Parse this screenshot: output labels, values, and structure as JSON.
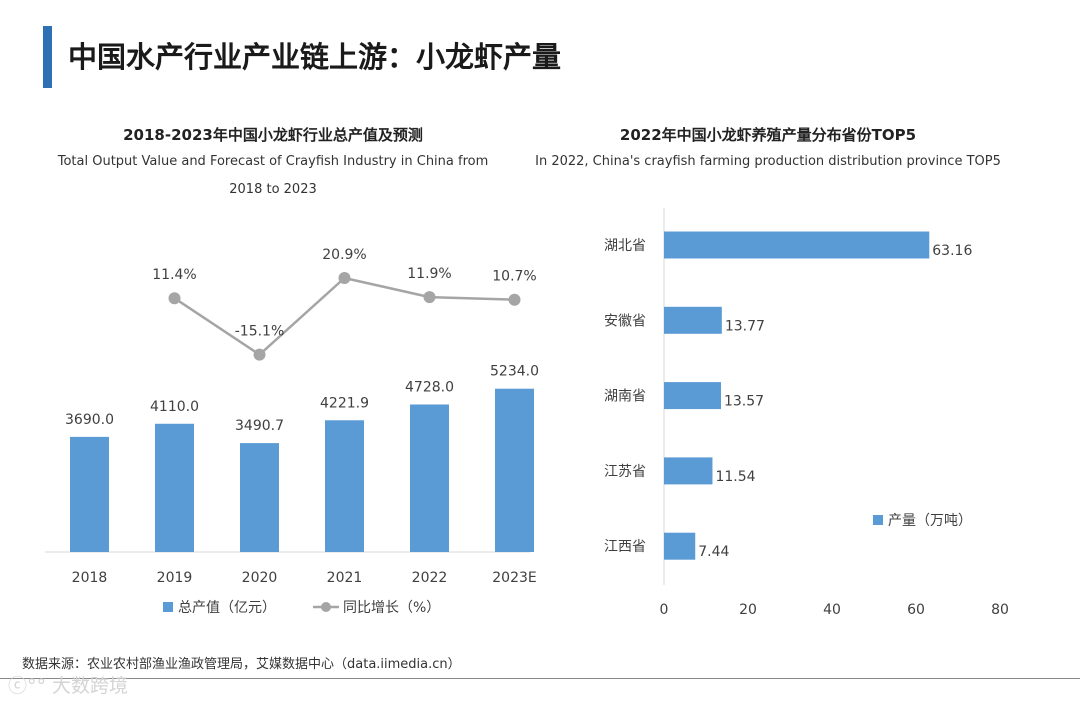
{
  "page": {
    "title": "中国水产行业产业链上游：小龙虾产量"
  },
  "source": "数据来源：农业农村部渔业渔政管理局，艾媒数据中心（data.iimedia.cn）",
  "watermark": "大数跨境",
  "colors": {
    "accent": "#2f6fb3",
    "bar": "#5b9bd5",
    "line": "#a5a5a5"
  },
  "chart_data": [
    {
      "type": "bar+line",
      "title": "2018-2023年中国小龙虾行业总产值及预测",
      "subtitle": "Total Output Value and Forecast of Crayfish Industry in China from 2018 to 2023",
      "categories": [
        "2018",
        "2019",
        "2020",
        "2021",
        "2022",
        "2023E"
      ],
      "series": [
        {
          "name": "总产值（亿元）",
          "type": "bar",
          "values": [
            3690.0,
            4110.0,
            3490.7,
            4221.9,
            4728.0,
            5234.0
          ],
          "labels": [
            "3690.0",
            "4110.0",
            "3490.7",
            "4221.9",
            "4728.0",
            "5234.0"
          ]
        },
        {
          "name": "同比增长（%）",
          "type": "line",
          "values": [
            null,
            11.4,
            -15.1,
            20.9,
            11.9,
            10.7
          ],
          "labels": [
            "",
            "11.4%",
            "-15.1%",
            "20.9%",
            "11.9%",
            "10.7%"
          ]
        }
      ],
      "legend": [
        "总产值（亿元）",
        "同比增长（%）"
      ],
      "legend_position": "bottom"
    },
    {
      "type": "barh",
      "title": "2022年中国小龙虾养殖产量分布省份TOP5",
      "subtitle": "In 2022, China's crayfish farming production distribution province TOP5",
      "categories": [
        "湖北省",
        "安徽省",
        "湖南省",
        "江苏省",
        "江西省"
      ],
      "values": [
        63.16,
        13.77,
        13.57,
        11.54,
        7.44
      ],
      "labels": [
        "63.16",
        "13.77",
        "13.57",
        "11.54",
        "7.44"
      ],
      "xlim": [
        0,
        80
      ],
      "xticks": [
        "0",
        "20",
        "40",
        "60",
        "80"
      ],
      "legend": [
        "产量（万吨）"
      ],
      "legend_position": "right"
    }
  ]
}
